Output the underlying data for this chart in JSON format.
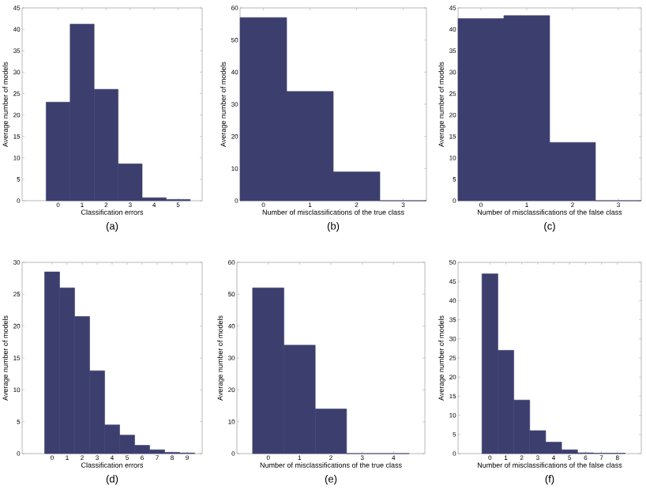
{
  "chart_data": [
    {
      "type": "histogram",
      "title": "(a)",
      "xlabel": "Classification errors",
      "ylabel": "Average number of models",
      "color": "#3c3f6e",
      "bins": [
        -0.5,
        0.5,
        1.5,
        2.5,
        3.5,
        4.5,
        5.5
      ],
      "values": [
        23,
        41.2,
        26,
        8.6,
        0.7,
        0.3
      ],
      "xlim": [
        -1.5,
        6
      ],
      "xticks": [
        0,
        1,
        2,
        3,
        4,
        5
      ],
      "ylim": [
        0,
        45
      ],
      "yticks": [
        0,
        5,
        10,
        15,
        20,
        25,
        30,
        35,
        40,
        45
      ]
    },
    {
      "type": "histogram",
      "title": "(b)",
      "xlabel": "Number of misclassifications of the true class",
      "ylabel": "Average number of models",
      "color": "#3c3f6e",
      "bins": [
        -0.5,
        0.5,
        1.5,
        2.5,
        3.5
      ],
      "values": [
        57,
        34,
        9,
        0
      ],
      "xlim": [
        -0.5,
        3.5
      ],
      "xticks": [
        0,
        1,
        2,
        3
      ],
      "ylim": [
        0,
        60
      ],
      "yticks": [
        0,
        10,
        20,
        30,
        40,
        50,
        60
      ]
    },
    {
      "type": "histogram",
      "title": "(c)",
      "xlabel": "Number of misclassifications of the false class",
      "ylabel": "Average number of models",
      "color": "#3c3f6e",
      "bins": [
        -0.5,
        0.5,
        1.5,
        2.5,
        3.5
      ],
      "values": [
        42.5,
        43.2,
        13.6,
        0
      ],
      "xlim": [
        -0.5,
        3.5
      ],
      "xticks": [
        0,
        1,
        2,
        3
      ],
      "ylim": [
        0,
        45
      ],
      "yticks": [
        0,
        5,
        10,
        15,
        20,
        25,
        30,
        35,
        40,
        45
      ]
    },
    {
      "type": "histogram",
      "title": "(d)",
      "xlabel": "Classification errors",
      "ylabel": "Average number of models",
      "color": "#3c3f6e",
      "bins": [
        -0.5,
        0.5,
        1.5,
        2.5,
        3.5,
        4.5,
        5.5,
        6.5,
        7.5,
        8.5,
        9.5
      ],
      "values": [
        28.5,
        26,
        21.5,
        13,
        4.5,
        2.9,
        1.3,
        0.6,
        0.2,
        0.1
      ],
      "xlim": [
        -2,
        10
      ],
      "xticks": [
        0,
        1,
        2,
        3,
        4,
        5,
        6,
        7,
        8,
        9
      ],
      "ylim": [
        0,
        30
      ],
      "yticks": [
        0,
        5,
        10,
        15,
        20,
        25,
        30
      ]
    },
    {
      "type": "histogram",
      "title": "(e)",
      "xlabel": "Number of misclassifications of the true class",
      "ylabel": "Average number of models",
      "color": "#3c3f6e",
      "bins": [
        -0.5,
        0.5,
        1.5,
        2.5,
        3.5,
        4.5
      ],
      "values": [
        52,
        34,
        14,
        0,
        0
      ],
      "xlim": [
        -1,
        5
      ],
      "xticks": [
        0,
        1,
        2,
        3,
        4
      ],
      "ylim": [
        0,
        60
      ],
      "yticks": [
        0,
        10,
        20,
        30,
        40,
        50,
        60
      ]
    },
    {
      "type": "histogram",
      "title": "(f)",
      "xlabel": "Number of misclassifications of the false class",
      "ylabel": "Average number of models",
      "color": "#3c3f6e",
      "bins": [
        -0.5,
        0.5,
        1.5,
        2.5,
        3.5,
        4.5,
        5.5,
        6.5,
        7.5,
        8.5
      ],
      "values": [
        47,
        27,
        14,
        6,
        3,
        1,
        0.2,
        0.1,
        0.1
      ],
      "xlim": [
        -2,
        9.5
      ],
      "xticks": [
        0,
        1,
        2,
        3,
        4,
        5,
        6,
        7,
        8
      ],
      "ylim": [
        0,
        50
      ],
      "yticks": [
        0,
        5,
        10,
        15,
        20,
        25,
        30,
        35,
        40,
        45,
        50
      ]
    }
  ]
}
